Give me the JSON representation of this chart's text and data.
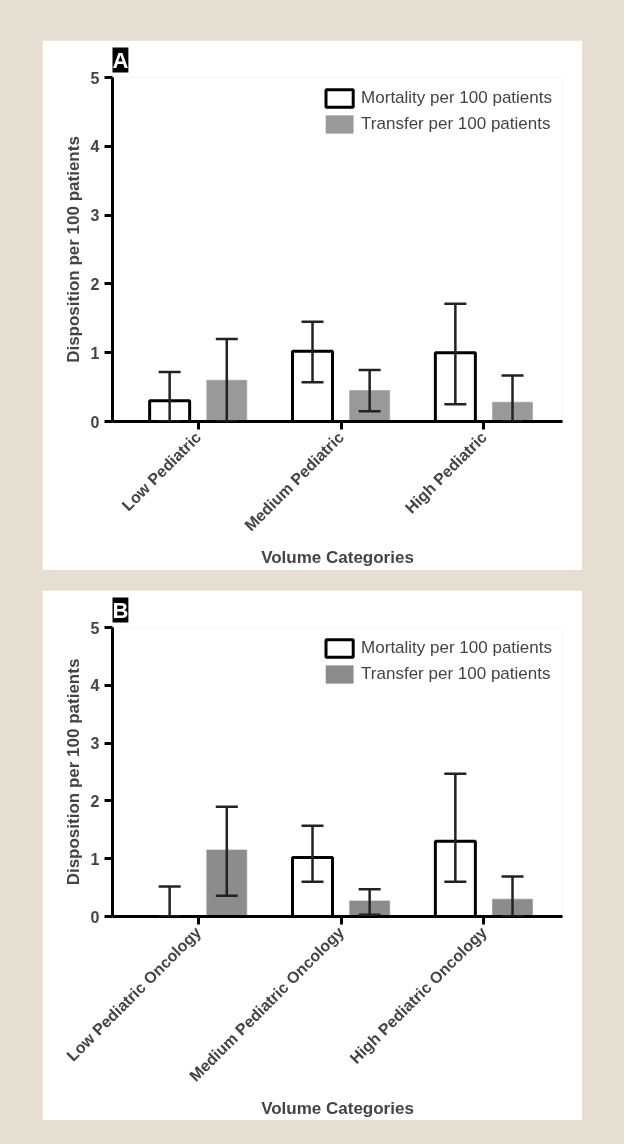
{
  "chart_data": [
    {
      "type": "bar",
      "title": "A",
      "xlabel": "Volume Categories",
      "ylabel": "Disposition per 100 patients",
      "categories": [
        "Low Pediatric",
        "Medium Pediatric",
        "High Pediatric"
      ],
      "ylim": [
        0,
        5
      ],
      "yticks": [
        0,
        1,
        2,
        3,
        4,
        5
      ],
      "grid": false,
      "legend": "top right",
      "series": [
        {
          "name": "Mortality per 100 patients",
          "color": "#ffffff",
          "values": [
            0.3,
            1.02,
            1.0
          ],
          "errors": [
            [
              0,
              0.72
            ],
            [
              0.57,
              1.45
            ],
            [
              0.25,
              1.71
            ]
          ]
        },
        {
          "name": "Transfer per 100 patients",
          "color": "#999999",
          "values": [
            0.6,
            0.45,
            0.28
          ],
          "errors": [
            [
              0,
              1.2
            ],
            [
              0.15,
              0.75
            ],
            [
              0,
              0.67
            ]
          ]
        }
      ]
    },
    {
      "type": "bar",
      "title": "B",
      "xlabel": "Volume Categories",
      "ylabel": "Disposition per 100 patients",
      "categories": [
        "Low Pediatric Oncology",
        "Medium Pediatric Oncology",
        "High Pediatric Oncology"
      ],
      "ylim": [
        0,
        5
      ],
      "yticks": [
        0,
        1,
        2,
        3,
        4,
        5
      ],
      "grid": false,
      "legend": "top right",
      "series": [
        {
          "name": "Mortality per 100 patients",
          "color": "#ffffff",
          "values": [
            0,
            1.02,
            1.3
          ],
          "errors": [
            [
              0,
              0.52
            ],
            [
              0.6,
              1.57
            ],
            [
              0.6,
              2.47
            ]
          ]
        },
        {
          "name": "Transfer per 100 patients",
          "color": "#8c8c8c",
          "values": [
            1.15,
            0.27,
            0.3
          ],
          "errors": [
            [
              0.36,
              1.9
            ],
            [
              0.03,
              0.47
            ],
            [
              0,
              0.69
            ]
          ]
        }
      ]
    }
  ]
}
